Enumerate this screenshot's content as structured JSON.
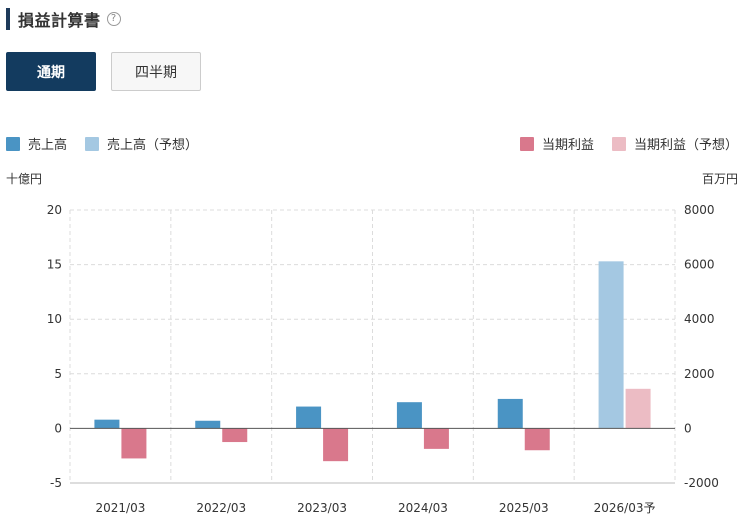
{
  "header": {
    "title": "損益計算書",
    "help": "?"
  },
  "period_tabs": [
    {
      "label": "通期",
      "active": true
    },
    {
      "label": "四半期",
      "active": false
    }
  ],
  "units": {
    "left": "十億円",
    "right": "百万円"
  },
  "colors": {
    "sales": "#4a94c4",
    "sales_forecast": "#a4c8e2",
    "profit": "#d9788c",
    "profit_forecast": "#ecbcc4"
  },
  "chart_data": {
    "type": "bar",
    "categories": [
      "2021/03",
      "2022/03",
      "2023/03",
      "2024/03",
      "2025/03",
      "2026/03予"
    ],
    "series": [
      {
        "name": "売上高",
        "axis": "left",
        "values": [
          0.8,
          0.7,
          2.0,
          2.4,
          2.7,
          null
        ]
      },
      {
        "name": "売上高（予想）",
        "axis": "left",
        "values": [
          null,
          null,
          null,
          null,
          null,
          15.3
        ]
      },
      {
        "name": "当期利益",
        "axis": "right",
        "values": [
          -1100,
          -500,
          -1200,
          -750,
          -800,
          null
        ]
      },
      {
        "name": "当期利益（予想）",
        "axis": "right",
        "values": [
          null,
          null,
          null,
          null,
          null,
          1450
        ]
      }
    ],
    "y_left": {
      "ticks": [
        "20",
        "15",
        "10",
        "5",
        "0",
        "-5"
      ],
      "range": [
        -5,
        20
      ]
    },
    "y_right": {
      "ticks": [
        "8000",
        "6000",
        "4000",
        "2000",
        "0",
        "-2000"
      ],
      "range": [
        -2000,
        8000
      ]
    },
    "grid": true,
    "legend": [
      {
        "label": "売上高",
        "position": "top-left"
      },
      {
        "label": "売上高（予想）",
        "position": "top-left"
      },
      {
        "label": "当期利益",
        "position": "top-right"
      },
      {
        "label": "当期利益（予想）",
        "position": "top-right"
      }
    ]
  }
}
